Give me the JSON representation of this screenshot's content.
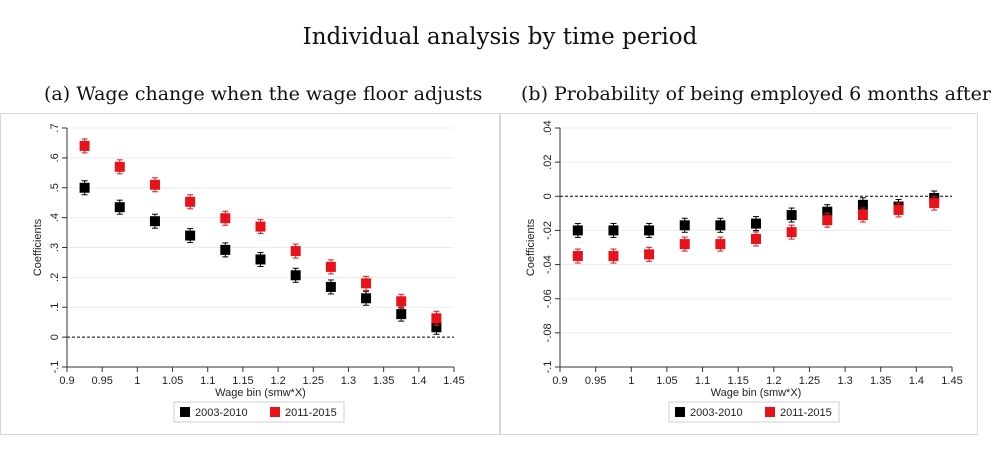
{
  "figure": {
    "title": "Individual analysis by time period",
    "colors": {
      "series_2003_2010": "#000000",
      "series_2011_2015": "#e8121b",
      "zero_line": "#000000"
    }
  },
  "chart_data": [
    {
      "type": "scatter",
      "panel": "(a) Wage change when the wage floor adjusts",
      "xlabel": "Wage bin (smw*X)",
      "ylabel": "Coefficients",
      "xlim": [
        0.9,
        1.45
      ],
      "ylim": [
        -0.1,
        0.7
      ],
      "x_ticks": [
        "0.9",
        "0.95",
        "1",
        "1.05",
        "1.1",
        "1.15",
        "1.2",
        "1.25",
        "1.3",
        "1.35",
        "1.4",
        "1.45"
      ],
      "y_ticks": [
        "-.1",
        "0",
        ".1",
        ".2",
        ".3",
        ".4",
        ".5",
        ".6",
        ".7"
      ],
      "legend": {
        "position": "bottom-center"
      },
      "x": [
        0.925,
        0.975,
        1.025,
        1.075,
        1.125,
        1.175,
        1.225,
        1.275,
        1.325,
        1.375,
        1.425
      ],
      "series": [
        {
          "name": "2003-2010",
          "color": "#000000",
          "values": [
            0.5,
            0.435,
            0.388,
            0.34,
            0.292,
            0.26,
            0.207,
            0.168,
            0.13,
            0.077,
            0.033
          ]
        },
        {
          "name": "2011-2015",
          "color": "#e8121b",
          "values": [
            0.64,
            0.57,
            0.51,
            0.453,
            0.398,
            0.37,
            0.288,
            0.235,
            0.18,
            0.12,
            0.063
          ]
        }
      ]
    },
    {
      "type": "scatter",
      "panel": "(b) Probability of being employed 6 months after",
      "xlabel": "Wage bin (smw*X)",
      "ylabel": "Coefficients",
      "xlim": [
        0.9,
        1.45
      ],
      "ylim": [
        -0.1,
        0.04
      ],
      "x_ticks": [
        "0.9",
        "0.95",
        "1",
        "1.05",
        "1.1",
        "1.15",
        "1.2",
        "1.25",
        "1.3",
        "1.35",
        "1.4",
        "1.45"
      ],
      "y_ticks": [
        "-.1",
        "-.08",
        "-.06",
        "-.04",
        "-.02",
        "0",
        ".02",
        ".04"
      ],
      "legend": {
        "position": "bottom-center"
      },
      "x": [
        0.925,
        0.975,
        1.025,
        1.075,
        1.125,
        1.175,
        1.225,
        1.275,
        1.325,
        1.375,
        1.425
      ],
      "series": [
        {
          "name": "2003-2010",
          "color": "#000000",
          "values": [
            -0.02,
            -0.02,
            -0.02,
            -0.017,
            -0.017,
            -0.016,
            -0.011,
            -0.009,
            -0.005,
            -0.006,
            -0.001
          ]
        },
        {
          "name": "2011-2015",
          "color": "#e8121b",
          "values": [
            -0.035,
            -0.035,
            -0.034,
            -0.028,
            -0.028,
            -0.025,
            -0.021,
            -0.014,
            -0.011,
            -0.008,
            -0.004
          ]
        }
      ]
    }
  ]
}
